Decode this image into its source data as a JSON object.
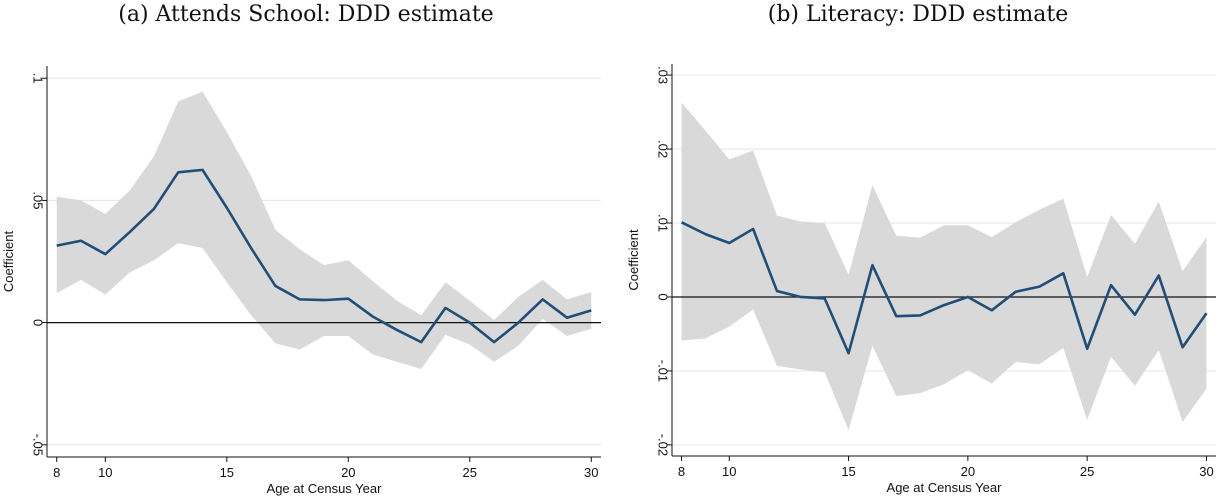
{
  "chart_data": [
    {
      "type": "line",
      "title": "(a) Attends School: DDD estimate",
      "xlabel": "Age at Census Year",
      "ylabel": "Coefficient",
      "xlim": [
        7.6,
        30.4
      ],
      "ylim": [
        -0.055,
        0.105
      ],
      "xticks": [
        8,
        10,
        15,
        20,
        25,
        30
      ],
      "xtick_labels": [
        "8",
        "10",
        "15",
        "20",
        "25",
        "30"
      ],
      "yticks": [
        -0.05,
        0,
        0.05,
        0.1
      ],
      "ytick_labels": [
        "-.05",
        "0",
        ".05",
        ".1"
      ],
      "reference_line": 0,
      "grid": true,
      "series": [
        {
          "x": [
            8,
            9,
            10,
            11,
            12,
            13,
            14,
            15,
            16,
            17,
            18,
            19,
            20,
            21,
            22,
            23,
            24,
            25,
            26,
            27,
            28,
            29,
            30
          ],
          "values": [
            0.0315,
            0.0335,
            0.028,
            0.037,
            0.0465,
            0.0615,
            0.0625,
            0.047,
            0.0305,
            0.015,
            0.0095,
            0.0092,
            0.0098,
            0.0025,
            -0.003,
            -0.008,
            0.006,
            0.0,
            -0.008,
            0.0,
            0.0095,
            0.002,
            0.005
          ],
          "ci_upper": [
            0.0515,
            0.05,
            0.0445,
            0.054,
            0.068,
            0.0905,
            0.0945,
            0.078,
            0.06,
            0.038,
            0.03,
            0.0235,
            0.0255,
            0.017,
            0.009,
            0.003,
            0.0165,
            0.009,
            0.001,
            0.0105,
            0.0175,
            0.0095,
            0.0125
          ],
          "ci_lower": [
            0.012,
            0.0175,
            0.0115,
            0.0205,
            0.0255,
            0.0325,
            0.0305,
            0.0165,
            0.003,
            -0.0085,
            -0.011,
            -0.0055,
            -0.0055,
            -0.013,
            -0.016,
            -0.019,
            -0.005,
            -0.009,
            -0.016,
            -0.0095,
            0.0015,
            -0.0055,
            -0.0025
          ]
        }
      ],
      "colors": {
        "line": "#1f4e79",
        "band": "#d9d9d9",
        "grid": "#e6e6e6",
        "axis": "#111111"
      }
    },
    {
      "type": "line",
      "title": "(b) Literacy: DDD estimate",
      "xlabel": "Age at Census Year",
      "ylabel": "Coefficient",
      "xlim": [
        7.6,
        30.4
      ],
      "ylim": [
        -0.0215,
        0.0315
      ],
      "xticks": [
        8,
        10,
        15,
        20,
        25,
        30
      ],
      "xtick_labels": [
        "8",
        "10",
        "15",
        "20",
        "25",
        "30"
      ],
      "yticks": [
        -0.02,
        -0.01,
        0,
        0.01,
        0.02,
        0.03
      ],
      "ytick_labels": [
        "-.02",
        "-.01",
        "0",
        ".01",
        ".02",
        ".03"
      ],
      "reference_line": 0,
      "grid": true,
      "series": [
        {
          "x": [
            8,
            9,
            10,
            11,
            12,
            13,
            14,
            15,
            16,
            17,
            18,
            19,
            20,
            21,
            22,
            23,
            24,
            25,
            26,
            27,
            28,
            29,
            30
          ],
          "values": [
            0.0101,
            0.0085,
            0.0073,
            0.0092,
            0.0008,
            0.0,
            -0.0002,
            -0.0076,
            0.0043,
            -0.0026,
            -0.0025,
            -0.0011,
            0.0,
            -0.0018,
            0.0007,
            0.0014,
            0.0032,
            -0.007,
            0.0016,
            -0.0024,
            0.0029,
            -0.0068,
            -0.0022
          ],
          "ci_upper": [
            0.0263,
            0.0225,
            0.0186,
            0.0198,
            0.011,
            0.0102,
            0.01,
            0.003,
            0.0151,
            0.0083,
            0.008,
            0.0097,
            0.0097,
            0.0081,
            0.0101,
            0.0118,
            0.0133,
            0.0027,
            0.0111,
            0.0072,
            0.0129,
            0.0035,
            0.0081
          ],
          "ci_lower": [
            -0.0059,
            -0.0056,
            -0.004,
            -0.0017,
            -0.0093,
            -0.0098,
            -0.0102,
            -0.018,
            -0.0066,
            -0.0134,
            -0.013,
            -0.0118,
            -0.0099,
            -0.0117,
            -0.0088,
            -0.0091,
            -0.0069,
            -0.0166,
            -0.0081,
            -0.012,
            -0.0072,
            -0.0169,
            -0.0124
          ]
        }
      ],
      "colors": {
        "line": "#1f4e79",
        "band": "#d9d9d9",
        "grid": "#e6e6e6",
        "axis": "#111111"
      }
    }
  ]
}
